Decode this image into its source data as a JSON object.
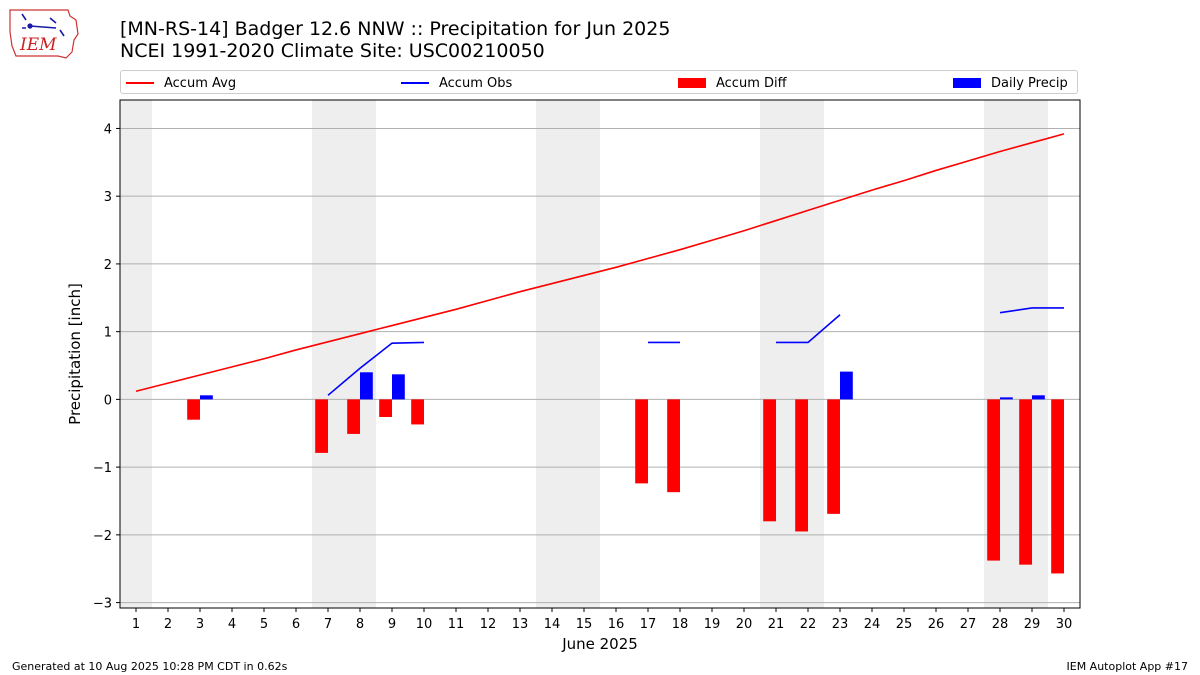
{
  "title_line1": "[MN-RS-14] Badger 12.6 NNW :: Precipitation for Jun 2025",
  "title_line2": "NCEI 1991-2020 Climate Site: USC00210050",
  "logo_text": "IEM",
  "footer_left": "Generated at 10 Aug 2025 10:28 PM CDT in 0.62s",
  "footer_right": "IEM Autoplot App #17",
  "colors": {
    "avg": "#ff0000",
    "obs": "#0000ff",
    "diff": "#ff0000",
    "daily": "#0000ff",
    "weekend": "#eeeeee",
    "grid": "#b0b0b0"
  },
  "chart_data": {
    "type": "bar",
    "xlabel": "June 2025",
    "ylabel": "Precipitation [inch]",
    "ylim": [
      -3.08,
      4.42
    ],
    "xlim": [
      0.5,
      30.5
    ],
    "grid": "horizontal",
    "legend_placement": "top",
    "x_ticks": [
      1,
      2,
      3,
      4,
      5,
      6,
      7,
      8,
      9,
      10,
      11,
      12,
      13,
      14,
      15,
      16,
      17,
      18,
      19,
      20,
      21,
      22,
      23,
      24,
      25,
      26,
      27,
      28,
      29,
      30
    ],
    "y_ticks": [
      -3,
      -2,
      -1,
      0,
      1,
      2,
      3,
      4
    ],
    "y_tick_labels": [
      "−3",
      "−2",
      "−1",
      "0",
      "1",
      "2",
      "3",
      "4"
    ],
    "weekend_days": [
      1,
      7,
      8,
      14,
      15,
      21,
      22,
      28,
      29
    ],
    "legend": [
      "Accum Avg",
      "Accum Obs",
      "Accum Diff",
      "Daily Precip"
    ],
    "series": [
      {
        "name": "Accum Avg",
        "kind": "line",
        "x": [
          1,
          2,
          3,
          4,
          5,
          6,
          7,
          8,
          9,
          10,
          11,
          12,
          13,
          14,
          15,
          16,
          17,
          18,
          19,
          20,
          21,
          22,
          23,
          24,
          25,
          26,
          27,
          28,
          29,
          30
        ],
        "values": [
          0.12,
          0.24,
          0.36,
          0.48,
          0.6,
          0.73,
          0.85,
          0.97,
          1.09,
          1.21,
          1.33,
          1.46,
          1.59,
          1.71,
          1.83,
          1.95,
          2.08,
          2.21,
          2.35,
          2.49,
          2.64,
          2.79,
          2.94,
          3.09,
          3.23,
          3.38,
          3.52,
          3.66,
          3.79,
          3.92
        ]
      },
      {
        "name": "Accum Obs",
        "kind": "line",
        "segments": [
          {
            "x": [
              7,
              8,
              9,
              10
            ],
            "values": [
              0.06,
              0.46,
              0.83,
              0.84
            ]
          },
          {
            "x": [
              17,
              18
            ],
            "values": [
              0.84,
              0.84
            ]
          },
          {
            "x": [
              21,
              22,
              23
            ],
            "values": [
              0.84,
              0.84,
              1.25
            ]
          },
          {
            "x": [
              28,
              29,
              30
            ],
            "values": [
              1.28,
              1.35,
              1.35
            ]
          }
        ]
      },
      {
        "name": "Accum Diff",
        "kind": "bar",
        "x": [
          3,
          7,
          8,
          9,
          10,
          17,
          18,
          21,
          22,
          23,
          28,
          29,
          30
        ],
        "values": [
          -0.3,
          -0.79,
          -0.51,
          -0.26,
          -0.37,
          -1.24,
          -1.37,
          -1.8,
          -1.95,
          -1.69,
          -2.38,
          -2.44,
          -2.57
        ]
      },
      {
        "name": "Daily Precip",
        "kind": "bar",
        "x": [
          3,
          8,
          9,
          23,
          28,
          29
        ],
        "values": [
          0.06,
          0.4,
          0.37,
          0.41,
          0.03,
          0.06
        ]
      }
    ]
  }
}
